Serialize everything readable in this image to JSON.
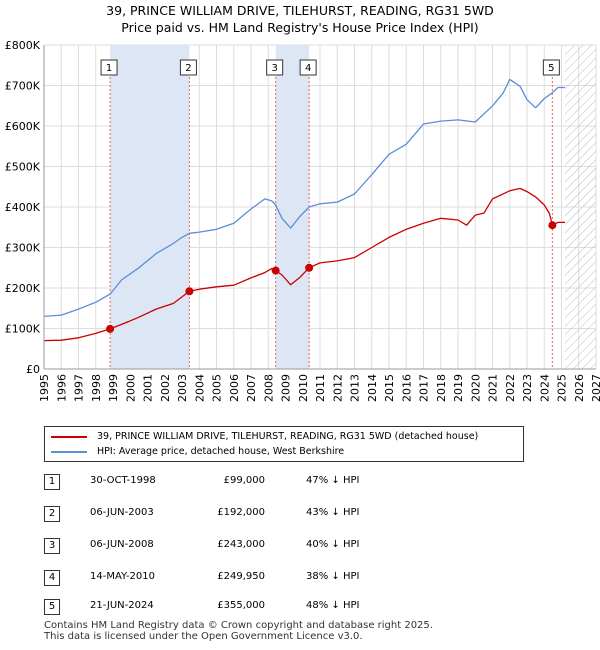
{
  "header": {
    "title_line1": "39, PRINCE WILLIAM DRIVE, TILEHURST, READING, RG31 5WD",
    "title_line2": "Price paid vs. HM Land Registry's House Price Index (HPI)"
  },
  "legend": {
    "property_label": "39, PRINCE WILLIAM DRIVE, TILEHURST, READING, RG31 5WD (detached house)",
    "hpi_label": "HPI: Average price, detached house, West Berkshire"
  },
  "sales": [
    {
      "num": "1",
      "date": "30-OCT-1998",
      "price": "£99,000",
      "hpi": "47% ↓ HPI"
    },
    {
      "num": "2",
      "date": "06-JUN-2003",
      "price": "£192,000",
      "hpi": "43% ↓ HPI"
    },
    {
      "num": "3",
      "date": "06-JUN-2008",
      "price": "£243,000",
      "hpi": "40% ↓ HPI"
    },
    {
      "num": "4",
      "date": "14-MAY-2010",
      "price": "£249,950",
      "hpi": "38% ↓ HPI"
    },
    {
      "num": "5",
      "date": "21-JUN-2024",
      "price": "£355,000",
      "hpi": "48% ↓ HPI"
    }
  ],
  "footer": {
    "line1": "Contains HM Land Registry data © Crown copyright and database right 2025.",
    "line2": "This data is licensed under the Open Government Licence v3.0."
  },
  "colors": {
    "property": "#cc0000",
    "hpi": "#5b8ed6",
    "shade": "#dde6f5",
    "marker_line": "#e06666",
    "grid": "#dddddd"
  },
  "chart_data": {
    "type": "line",
    "xlim": [
      1995,
      2027
    ],
    "ylim": [
      0,
      800000
    ],
    "x_ticks": [
      "1995",
      "1996",
      "1997",
      "1998",
      "1999",
      "2000",
      "2001",
      "2002",
      "2003",
      "2004",
      "2005",
      "2006",
      "2007",
      "2008",
      "2009",
      "2010",
      "2011",
      "2012",
      "2013",
      "2014",
      "2015",
      "2016",
      "2017",
      "2018",
      "2019",
      "2020",
      "2021",
      "2022",
      "2023",
      "2024",
      "2025",
      "2026",
      "2027"
    ],
    "y_ticks": [
      {
        "value": 0,
        "label": "£0"
      },
      {
        "value": 100000,
        "label": "£100K"
      },
      {
        "value": 200000,
        "label": "£200K"
      },
      {
        "value": 300000,
        "label": "£300K"
      },
      {
        "value": 400000,
        "label": "£400K"
      },
      {
        "value": 500000,
        "label": "£500K"
      },
      {
        "value": 600000,
        "label": "£600K"
      },
      {
        "value": 700000,
        "label": "£700K"
      },
      {
        "value": 800000,
        "label": "£800K"
      }
    ],
    "shaded_periods": [
      [
        1998.83,
        2003.43
      ],
      [
        2008.43,
        2010.37
      ]
    ],
    "forecast_start": 2025.2,
    "sale_points": [
      {
        "label": "1",
        "x": 1998.83,
        "y": 99000
      },
      {
        "label": "2",
        "x": 2003.43,
        "y": 192000
      },
      {
        "label": "3",
        "x": 2008.43,
        "y": 243000
      },
      {
        "label": "4",
        "x": 2010.37,
        "y": 249950
      },
      {
        "label": "5",
        "x": 2024.47,
        "y": 355000
      }
    ],
    "series": [
      {
        "name": "39, PRINCE WILLIAM DRIVE, TILEHURST, READING, RG31 5WD (detached house)",
        "x": [
          1995.0,
          1996.0,
          1997.0,
          1998.0,
          1998.83,
          1999.5,
          2000.5,
          2001.5,
          2002.5,
          2003.0,
          2003.43,
          2004.0,
          2005.0,
          2006.0,
          2007.0,
          2007.8,
          2008.2,
          2008.43,
          2008.8,
          2009.3,
          2009.8,
          2010.37,
          2011.0,
          2012.0,
          2013.0,
          2014.0,
          2015.0,
          2016.0,
          2017.0,
          2018.0,
          2019.0,
          2019.5,
          2020.0,
          2020.5,
          2021.0,
          2022.0,
          2022.6,
          2023.0,
          2023.5,
          2024.0,
          2024.3,
          2024.47,
          2024.8,
          2025.2
        ],
        "y": [
          70000,
          71000,
          77000,
          88000,
          99000,
          110000,
          128000,
          148000,
          162000,
          178000,
          192000,
          197000,
          203000,
          207000,
          225000,
          238000,
          248000,
          243000,
          232000,
          208000,
          225000,
          249950,
          262000,
          267000,
          275000,
          300000,
          325000,
          345000,
          360000,
          372000,
          368000,
          355000,
          380000,
          385000,
          420000,
          440000,
          446000,
          438000,
          425000,
          405000,
          384000,
          355000,
          362000,
          362000
        ]
      },
      {
        "name": "HPI: Average price, detached house, West Berkshire",
        "x": [
          1995.0,
          1996.0,
          1997.0,
          1998.0,
          1998.83,
          1999.5,
          2000.5,
          2001.5,
          2002.5,
          2003.0,
          2003.43,
          2004.0,
          2005.0,
          2006.0,
          2007.0,
          2007.8,
          2008.2,
          2008.43,
          2008.8,
          2009.3,
          2009.8,
          2010.37,
          2011.0,
          2012.0,
          2013.0,
          2014.0,
          2015.0,
          2016.0,
          2017.0,
          2018.0,
          2019.0,
          2020.0,
          2021.0,
          2021.6,
          2022.0,
          2022.6,
          2023.0,
          2023.5,
          2024.0,
          2024.47,
          2024.8,
          2025.2
        ],
        "y": [
          130000,
          133000,
          148000,
          165000,
          185000,
          220000,
          250000,
          285000,
          310000,
          325000,
          335000,
          338000,
          345000,
          360000,
          395000,
          420000,
          415000,
          405000,
          372000,
          348000,
          375000,
          400000,
          408000,
          412000,
          432000,
          480000,
          530000,
          555000,
          605000,
          612000,
          615000,
          610000,
          650000,
          680000,
          715000,
          698000,
          665000,
          645000,
          668000,
          682000,
          695000,
          695000
        ]
      }
    ]
  }
}
